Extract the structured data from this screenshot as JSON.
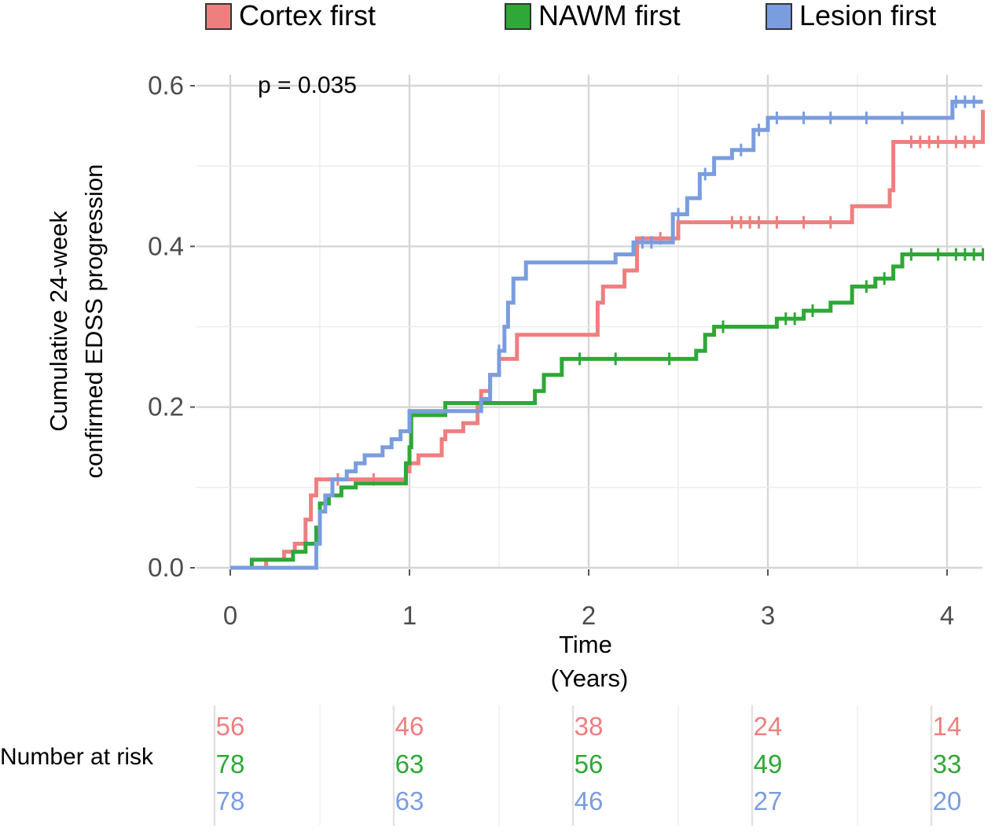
{
  "chart_data": {
    "type": "line",
    "subtype": "kaplan-meier-cumulative-incidence",
    "xlabel": "Time",
    "xlabel_unit": "(Years)",
    "ylabel_line1": "Cumulative 24-week",
    "ylabel_line2": "confirmed EDSS progression",
    "xlim": [
      0,
      4.2
    ],
    "ylim": [
      0,
      0.6
    ],
    "x_ticks": [
      0,
      1,
      2,
      3,
      4
    ],
    "x_tick_labels": [
      "0",
      "1",
      "2",
      "3",
      "4"
    ],
    "y_ticks": [
      0.0,
      0.2,
      0.4,
      0.6
    ],
    "y_tick_labels": [
      "0.0",
      "0.2",
      "0.4",
      "0.6"
    ],
    "grid": true,
    "legend_position": "top",
    "annotation": "p = 0.035",
    "series": [
      {
        "name": "Cortex first",
        "color": "#ee7f7f",
        "steps": [
          [
            0,
            0
          ],
          [
            0.1,
            0
          ],
          [
            0.2,
            0.01
          ],
          [
            0.3,
            0.02
          ],
          [
            0.36,
            0.03
          ],
          [
            0.42,
            0.06
          ],
          [
            0.45,
            0.09
          ],
          [
            0.48,
            0.11
          ],
          [
            0.95,
            0.11
          ],
          [
            0.98,
            0.12
          ],
          [
            1.0,
            0.13
          ],
          [
            1.05,
            0.14
          ],
          [
            1.18,
            0.16
          ],
          [
            1.2,
            0.17
          ],
          [
            1.3,
            0.18
          ],
          [
            1.38,
            0.2
          ],
          [
            1.4,
            0.22
          ],
          [
            1.45,
            0.24
          ],
          [
            1.5,
            0.26
          ],
          [
            1.6,
            0.29
          ],
          [
            2.0,
            0.29
          ],
          [
            2.05,
            0.33
          ],
          [
            2.08,
            0.35
          ],
          [
            2.2,
            0.37
          ],
          [
            2.27,
            0.41
          ],
          [
            2.5,
            0.43
          ],
          [
            3.45,
            0.43
          ],
          [
            3.47,
            0.45
          ],
          [
            3.68,
            0.47
          ],
          [
            3.7,
            0.53
          ],
          [
            4.2,
            0.57
          ]
        ],
        "censor": [
          0.6,
          0.8,
          2.4,
          2.8,
          2.85,
          2.9,
          2.95,
          3.05,
          3.2,
          3.35,
          3.8,
          3.85,
          3.9,
          3.95,
          4.05,
          4.1,
          4.15
        ],
        "at_risk": [
          56,
          46,
          38,
          24,
          14
        ]
      },
      {
        "name": "NAWM first",
        "color": "#2ea836",
        "steps": [
          [
            0,
            0
          ],
          [
            0.12,
            0.01
          ],
          [
            0.35,
            0.02
          ],
          [
            0.42,
            0.03
          ],
          [
            0.48,
            0.05
          ],
          [
            0.5,
            0.08
          ],
          [
            0.55,
            0.09
          ],
          [
            0.62,
            0.1
          ],
          [
            0.7,
            0.105
          ],
          [
            0.95,
            0.105
          ],
          [
            0.98,
            0.13
          ],
          [
            1.0,
            0.15
          ],
          [
            1.01,
            0.19
          ],
          [
            1.2,
            0.205
          ],
          [
            1.65,
            0.205
          ],
          [
            1.7,
            0.22
          ],
          [
            1.75,
            0.24
          ],
          [
            1.85,
            0.26
          ],
          [
            2.55,
            0.26
          ],
          [
            2.6,
            0.27
          ],
          [
            2.65,
            0.29
          ],
          [
            2.7,
            0.3
          ],
          [
            2.95,
            0.3
          ],
          [
            3.05,
            0.31
          ],
          [
            3.2,
            0.32
          ],
          [
            3.35,
            0.33
          ],
          [
            3.45,
            0.33
          ],
          [
            3.47,
            0.35
          ],
          [
            3.6,
            0.36
          ],
          [
            3.7,
            0.375
          ],
          [
            3.75,
            0.39
          ],
          [
            4.2,
            0.39
          ]
        ],
        "censor": [
          1.95,
          2.15,
          2.45,
          2.75,
          3.1,
          3.15,
          3.25,
          3.55,
          3.65,
          3.8,
          3.95,
          4.05,
          4.1,
          4.15,
          4.2
        ],
        "at_risk": [
          78,
          63,
          56,
          49,
          33
        ]
      },
      {
        "name": "Lesion first",
        "color": "#7a9ddf",
        "steps": [
          [
            0,
            0
          ],
          [
            0.45,
            0
          ],
          [
            0.48,
            0.03
          ],
          [
            0.5,
            0.07
          ],
          [
            0.53,
            0.09
          ],
          [
            0.57,
            0.11
          ],
          [
            0.65,
            0.12
          ],
          [
            0.7,
            0.13
          ],
          [
            0.75,
            0.14
          ],
          [
            0.85,
            0.15
          ],
          [
            0.9,
            0.16
          ],
          [
            0.95,
            0.17
          ],
          [
            1.0,
            0.195
          ],
          [
            1.38,
            0.195
          ],
          [
            1.4,
            0.21
          ],
          [
            1.45,
            0.24
          ],
          [
            1.5,
            0.27
          ],
          [
            1.53,
            0.3
          ],
          [
            1.55,
            0.33
          ],
          [
            1.58,
            0.36
          ],
          [
            1.65,
            0.38
          ],
          [
            2.1,
            0.38
          ],
          [
            2.15,
            0.39
          ],
          [
            2.25,
            0.405
          ],
          [
            2.45,
            0.405
          ],
          [
            2.47,
            0.44
          ],
          [
            2.55,
            0.46
          ],
          [
            2.62,
            0.49
          ],
          [
            2.7,
            0.51
          ],
          [
            2.8,
            0.52
          ],
          [
            2.92,
            0.545
          ],
          [
            3.0,
            0.56
          ],
          [
            4.0,
            0.56
          ],
          [
            4.03,
            0.58
          ],
          [
            4.2,
            0.58
          ]
        ],
        "censor": [
          1.5,
          2.3,
          2.35,
          2.5,
          2.65,
          2.85,
          2.95,
          3.05,
          3.2,
          3.35,
          3.55,
          3.75,
          4.05,
          4.1,
          4.15
        ],
        "at_risk": [
          78,
          63,
          46,
          27,
          20
        ]
      }
    ],
    "risk_table": {
      "title": "Number at risk",
      "x_positions": [
        0,
        1,
        2,
        3,
        4
      ]
    }
  }
}
